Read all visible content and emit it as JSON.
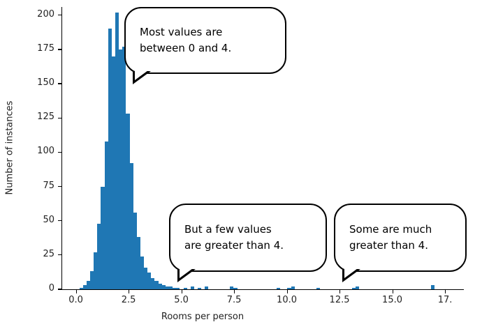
{
  "chart_data": {
    "type": "bar",
    "subtype": "histogram",
    "title": "",
    "xlabel": "Rooms per person",
    "ylabel": "Number of instances",
    "bar_color": "#1f77b4",
    "axis_color": "#000000",
    "grid": false,
    "legend": null,
    "bin_width": 0.17,
    "xlim": [
      -0.68,
      18.3
    ],
    "ylim": [
      0,
      205
    ],
    "x_ticks": [
      {
        "v": 0,
        "label": "0.0"
      },
      {
        "v": 2.5,
        "label": "2.5"
      },
      {
        "v": 5,
        "label": "5.0"
      },
      {
        "v": 7.5,
        "label": "7.5"
      },
      {
        "v": 10,
        "label": "10.0"
      },
      {
        "v": 12.5,
        "label": "12.5"
      },
      {
        "v": 15,
        "label": "15.0"
      },
      {
        "v": 17.5,
        "label": "17."
      }
    ],
    "y_ticks": [
      {
        "v": 0,
        "label": "0"
      },
      {
        "v": 25,
        "label": "25"
      },
      {
        "v": 50,
        "label": "50"
      },
      {
        "v": 75,
        "label": "75"
      },
      {
        "v": 100,
        "label": "100"
      },
      {
        "v": 125,
        "label": "125"
      },
      {
        "v": 150,
        "label": "150"
      },
      {
        "v": 175,
        "label": "175"
      },
      {
        "v": 200,
        "label": "200"
      }
    ],
    "bins": [
      [
        0.17,
        1
      ],
      [
        0.34,
        3
      ],
      [
        0.51,
        6
      ],
      [
        0.68,
        13
      ],
      [
        0.85,
        27
      ],
      [
        1.02,
        48
      ],
      [
        1.19,
        75
      ],
      [
        1.36,
        108
      ],
      [
        1.53,
        190
      ],
      [
        1.7,
        170
      ],
      [
        1.87,
        202
      ],
      [
        2.04,
        175
      ],
      [
        2.21,
        177
      ],
      [
        2.38,
        128
      ],
      [
        2.55,
        92
      ],
      [
        2.72,
        56
      ],
      [
        2.89,
        38
      ],
      [
        3.06,
        24
      ],
      [
        3.23,
        16
      ],
      [
        3.4,
        12
      ],
      [
        3.57,
        8
      ],
      [
        3.74,
        6
      ],
      [
        3.91,
        4
      ],
      [
        4.08,
        3
      ],
      [
        4.25,
        2
      ],
      [
        4.42,
        2
      ],
      [
        4.59,
        1
      ],
      [
        4.76,
        1
      ],
      [
        5.1,
        1
      ],
      [
        5.44,
        2
      ],
      [
        5.78,
        1
      ],
      [
        6.12,
        2
      ],
      [
        7.31,
        2
      ],
      [
        7.48,
        1
      ],
      [
        9.52,
        1
      ],
      [
        10.03,
        1
      ],
      [
        10.2,
        2
      ],
      [
        11.39,
        1
      ],
      [
        13.09,
        1
      ],
      [
        13.26,
        2
      ],
      [
        16.83,
        3
      ]
    ]
  },
  "callouts": [
    {
      "text": "Most values are between 0 and 4.",
      "lines": [
        "Most values are",
        "between 0 and 4."
      ]
    },
    {
      "text": "But a few values are greater than 4.",
      "lines": [
        "But a few values",
        "are greater than 4."
      ]
    },
    {
      "text": "Some are much greater than 4.",
      "lines": [
        "Some are much",
        "greater than 4."
      ]
    }
  ]
}
